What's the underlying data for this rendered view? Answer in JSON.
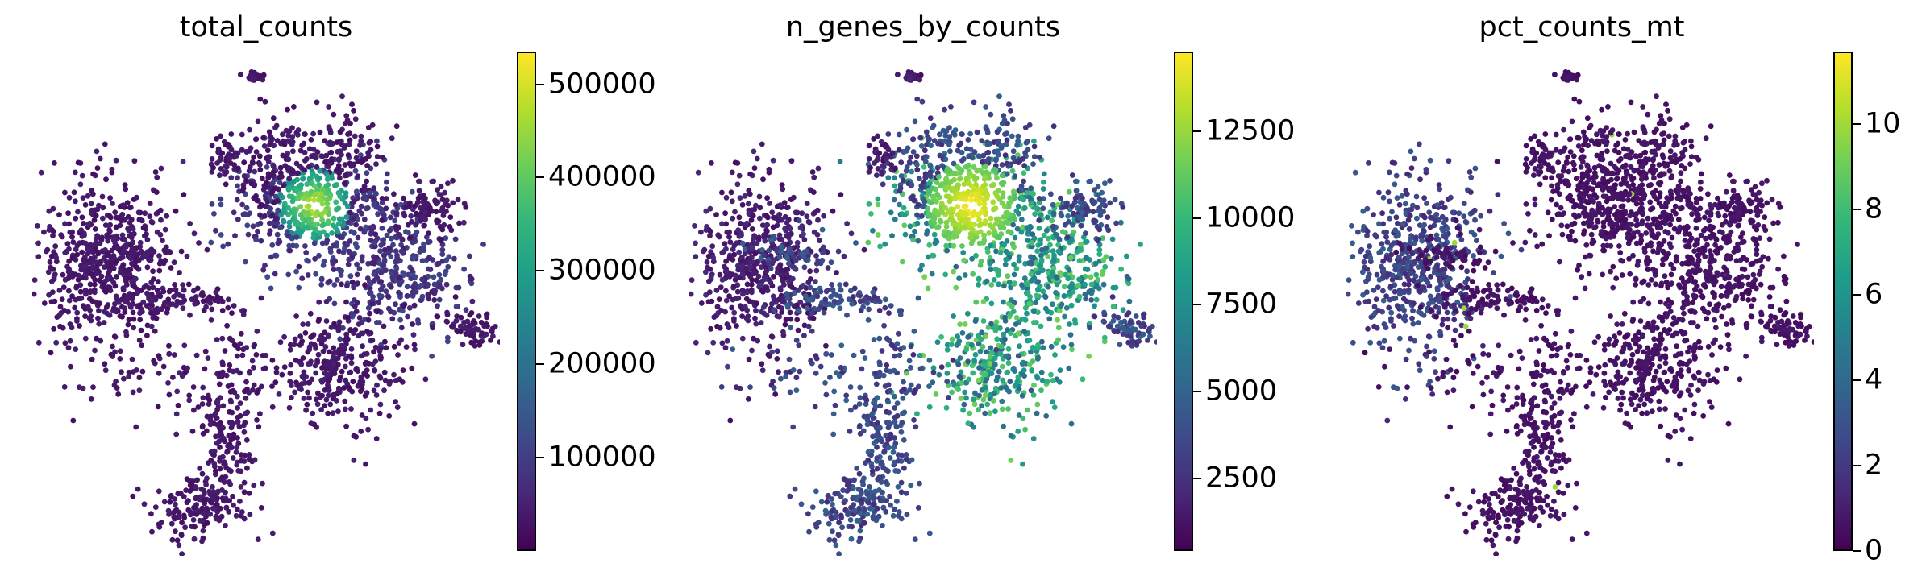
{
  "chart_data": [
    {
      "type": "scatter",
      "title": "total_counts",
      "colormap": "viridis",
      "colorbar": {
        "min": 0,
        "max": 535000,
        "ticks": [
          100000,
          200000,
          300000,
          400000,
          500000
        ],
        "tick_labels": [
          "100000",
          "200000",
          "300000",
          "400000",
          "500000"
        ]
      }
    },
    {
      "type": "scatter",
      "title": "n_genes_by_counts",
      "colormap": "viridis",
      "colorbar": {
        "min": 400,
        "max": 14800,
        "ticks": [
          2500,
          5000,
          7500,
          10000,
          12500
        ],
        "tick_labels": [
          "2500",
          "5000",
          "7500",
          "10000",
          "12500"
        ]
      }
    },
    {
      "type": "scatter",
      "title": "pct_counts_mt",
      "colormap": "viridis",
      "colorbar": {
        "min": 0,
        "max": 11.7,
        "ticks": [
          0,
          2,
          4,
          6,
          8,
          10
        ],
        "tick_labels": [
          "0",
          "2",
          "4",
          "6",
          "8",
          "10"
        ]
      }
    }
  ],
  "colors": {
    "viridis_low": "#440154",
    "viridis_mid": "#21918c",
    "viridis_high": "#fde725"
  }
}
